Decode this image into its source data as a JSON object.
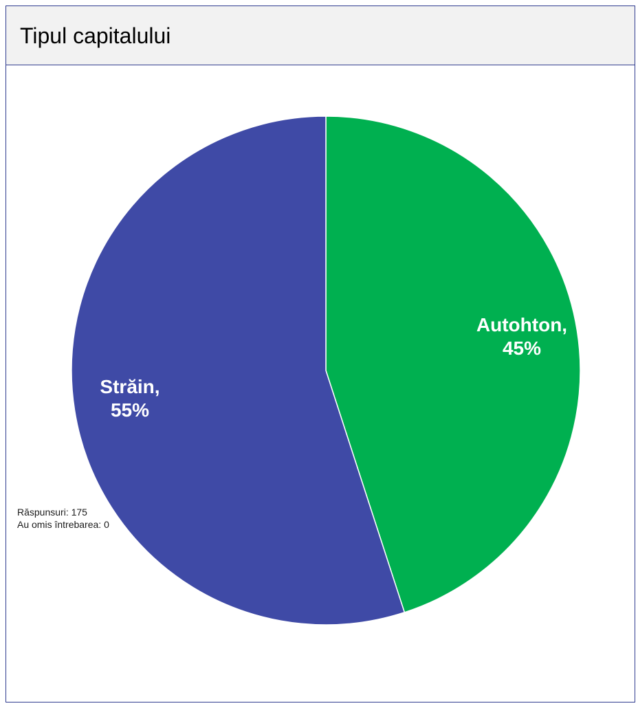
{
  "panel": {
    "title": "Tipul capitalului"
  },
  "chart_data": {
    "type": "pie",
    "categories": [
      "Autohton",
      "Străin"
    ],
    "values": [
      45,
      55
    ],
    "value_suffix": "%",
    "colors": [
      "#00b050",
      "#3f4aa6"
    ],
    "start_angle": "12 o'clock",
    "direction": "clockwise",
    "data_labels": [
      "Autohton,",
      "Străin,"
    ],
    "data_label_values": [
      "45%",
      "55%"
    ],
    "legend": "none"
  },
  "footer": {
    "responses_label": "Răspunsuri",
    "responses_value": "175",
    "skipped_label": "Au omis întrebarea",
    "skipped_value": "0"
  }
}
